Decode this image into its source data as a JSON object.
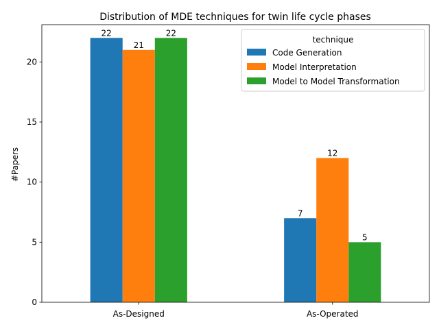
{
  "chart_data": {
    "type": "bar",
    "title": "Distribution of MDE techniques for twin life cycle phases",
    "xlabel": "",
    "ylabel": "#Papers",
    "categories": [
      "As-Designed",
      "As-Operated"
    ],
    "series": [
      {
        "name": "Code Generation",
        "values": [
          22,
          7
        ],
        "color": "#1f77b4"
      },
      {
        "name": "Model Interpretation",
        "values": [
          21,
          12
        ],
        "color": "#ff7f0e"
      },
      {
        "name": "Model to Model Transformation",
        "values": [
          22,
          5
        ],
        "color": "#2ca02c"
      }
    ],
    "ylim": [
      0,
      23.1
    ],
    "yticks": [
      0,
      5,
      10,
      15,
      20
    ],
    "legend": {
      "title": "technique",
      "placement": "top-right"
    },
    "grid": false
  }
}
